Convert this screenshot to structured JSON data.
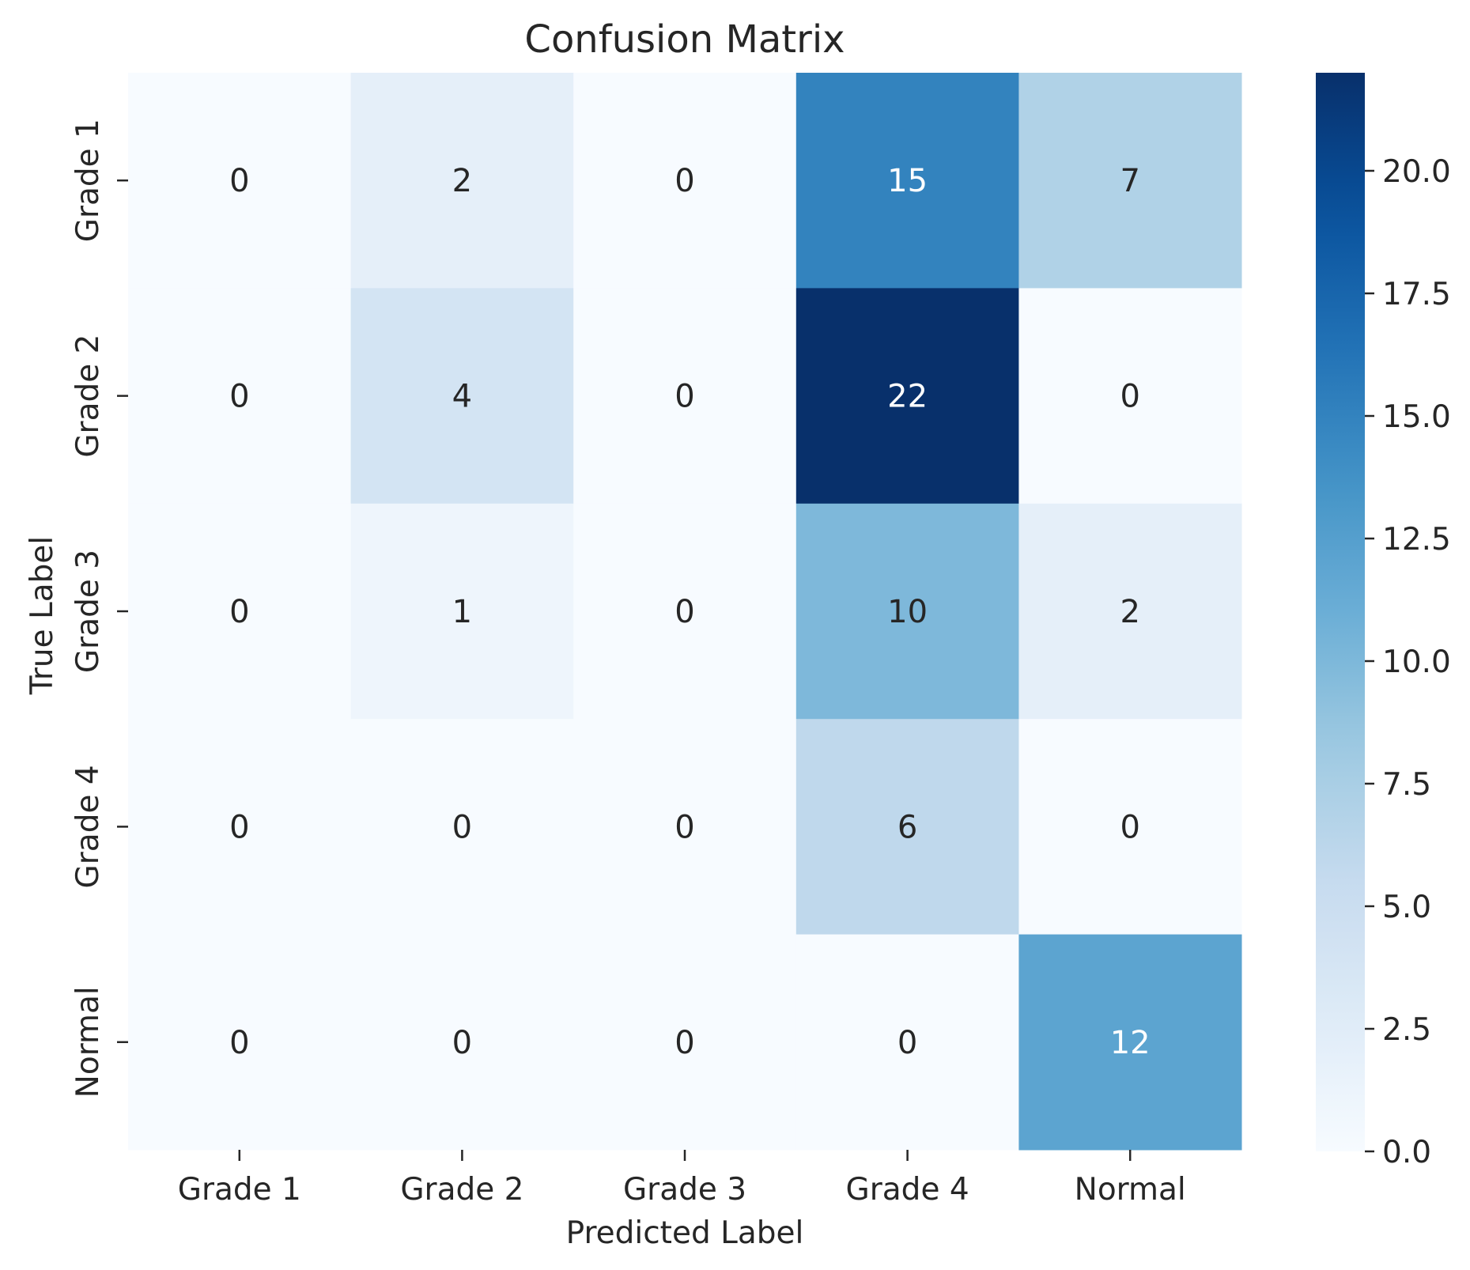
{
  "chart_data": {
    "type": "heatmap",
    "title": "Confusion Matrix",
    "xlabel": "Predicted Label",
    "ylabel": "True Label",
    "x_categories": [
      "Grade 1",
      "Grade 2",
      "Grade 3",
      "Grade 4",
      "Normal"
    ],
    "y_categories": [
      "Grade 1",
      "Grade 2",
      "Grade 3",
      "Grade 4",
      "Normal"
    ],
    "values": [
      [
        0,
        2,
        0,
        15,
        7
      ],
      [
        0,
        4,
        0,
        22,
        0
      ],
      [
        0,
        1,
        0,
        10,
        2
      ],
      [
        0,
        0,
        0,
        6,
        0
      ],
      [
        0,
        0,
        0,
        0,
        12
      ]
    ],
    "colormap": "Blues",
    "color_range": [
      0,
      22
    ],
    "colorbar_ticks": [
      0.0,
      2.5,
      5.0,
      7.5,
      10.0,
      12.5,
      15.0,
      17.5,
      20.0
    ],
    "colorbar_tick_labels": [
      "0.0",
      "2.5",
      "5.0",
      "7.5",
      "10.0",
      "12.5",
      "15.0",
      "17.5",
      "20.0"
    ],
    "annotation_colors": {
      "dark_text": "#262626",
      "light_text": "#ffffff"
    }
  }
}
